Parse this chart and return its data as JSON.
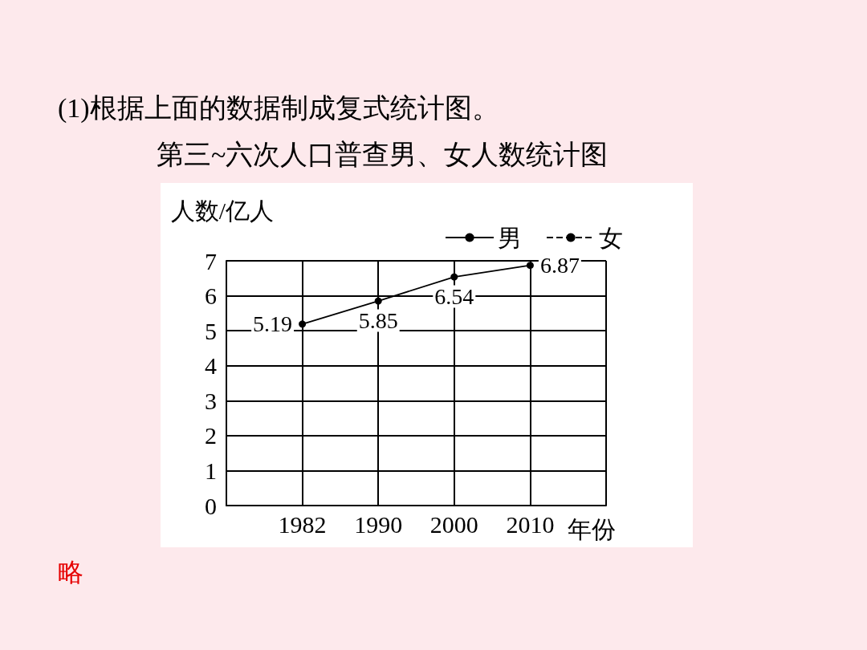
{
  "chart_data": {
    "type": "line",
    "title": "第三~六次人口普查男、女人数统计图",
    "xlabel": "年份",
    "ylabel": "人数/亿人",
    "annotations": [
      "(1)根据上面的数据制成复式统计图。",
      "略"
    ],
    "categories": [
      "1982",
      "1990",
      "2000",
      "2010"
    ],
    "series": [
      {
        "name": "男",
        "color": "#000000",
        "values": [
          5.19,
          5.85,
          6.54,
          6.87
        ],
        "line_style": "solid",
        "marker": "circle"
      },
      {
        "name": "女",
        "color": "#000000",
        "values": [
          null,
          null,
          null,
          null
        ],
        "line_style": "dashed",
        "marker": "none"
      }
    ],
    "ylim": [
      0,
      7
    ],
    "yticks": [
      0,
      1,
      2,
      3,
      4,
      5,
      6,
      7
    ],
    "grid": true,
    "legend": "top right",
    "data_labels": true
  }
}
